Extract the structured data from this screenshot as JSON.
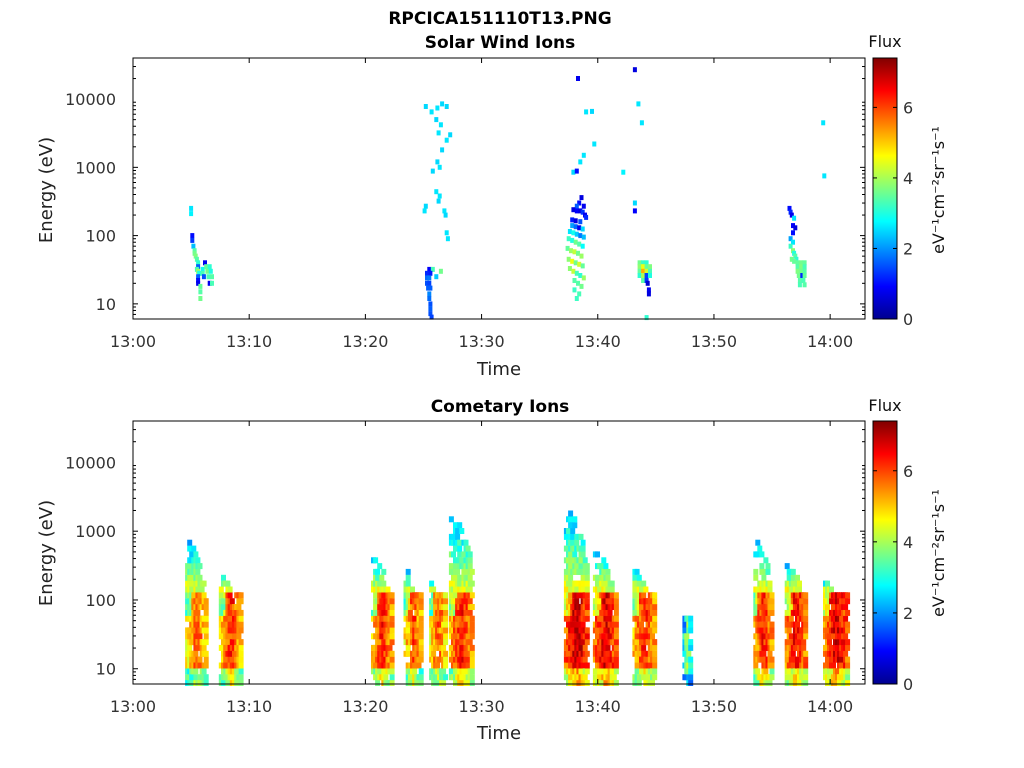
{
  "figure": {
    "title": "RPCICA151110T13.PNG",
    "colorbar_label": "Flux",
    "colorbar_unit": "eV⁻¹cm⁻²sr⁻¹s⁻¹"
  },
  "chart_data": [
    {
      "type": "heatmap",
      "title": "Solar Wind Ions",
      "xlabel": "Time",
      "ylabel": "Energy (eV)",
      "x_ticks": [
        "13:00",
        "13:10",
        "13:20",
        "13:30",
        "13:40",
        "13:50",
        "14:00"
      ],
      "x_range_minutes": [
        0,
        63
      ],
      "y_ticks": [
        "10",
        "100",
        "1000",
        "10000"
      ],
      "y_scale": "log",
      "y_range": [
        6,
        40000
      ],
      "colorbar": {
        "label": "Flux",
        "ticks": [
          "0",
          "2",
          "4",
          "6"
        ],
        "range": [
          0,
          7.4
        ],
        "colormap": "jet"
      },
      "cells": [
        [
          5.0,
          250,
          2.6
        ],
        [
          5.0,
          210,
          2.7
        ],
        [
          5.1,
          100,
          1.0
        ],
        [
          5.1,
          85,
          1.3
        ],
        [
          5.2,
          70,
          2.3
        ],
        [
          5.3,
          60,
          3.4
        ],
        [
          5.3,
          55,
          3.6
        ],
        [
          5.4,
          50,
          3.7
        ],
        [
          5.5,
          45,
          3.4
        ],
        [
          5.6,
          40,
          3.1
        ],
        [
          5.6,
          35,
          1.6
        ],
        [
          5.5,
          32,
          3.3
        ],
        [
          5.6,
          30,
          3.9
        ],
        [
          5.7,
          28,
          3.0
        ],
        [
          5.6,
          25,
          1.6
        ],
        [
          5.6,
          22,
          1.0
        ],
        [
          5.6,
          20,
          0.8
        ],
        [
          5.8,
          18,
          3.5
        ],
        [
          5.8,
          15,
          3.4
        ],
        [
          5.8,
          12,
          3.6
        ],
        [
          6.0,
          32,
          2.9
        ],
        [
          6.0,
          28,
          3.3
        ],
        [
          6.1,
          25,
          1.5
        ],
        [
          6.2,
          40,
          0.8
        ],
        [
          6.3,
          35,
          3.5
        ],
        [
          6.4,
          30,
          3.6
        ],
        [
          6.5,
          25,
          3.3
        ],
        [
          6.6,
          20,
          0.8
        ],
        [
          6.6,
          35,
          3.1
        ],
        [
          6.7,
          30,
          3.0
        ],
        [
          6.8,
          25,
          3.4
        ],
        [
          6.8,
          20,
          3.3
        ],
        [
          25.2,
          7800,
          2.5
        ],
        [
          25.7,
          6500,
          2.6
        ],
        [
          26.2,
          7400,
          2.6
        ],
        [
          26.6,
          8500,
          2.5
        ],
        [
          26.1,
          5000,
          2.5
        ],
        [
          26.5,
          4200,
          2.6
        ],
        [
          27.0,
          7800,
          2.5
        ],
        [
          26.3,
          3200,
          2.6
        ],
        [
          27.3,
          3000,
          2.5
        ],
        [
          27.0,
          2500,
          2.6
        ],
        [
          26.6,
          1800,
          2.5
        ],
        [
          26.2,
          1200,
          2.5
        ],
        [
          26.4,
          1000,
          2.6
        ],
        [
          25.8,
          880,
          2.5
        ],
        [
          26.1,
          440,
          2.6
        ],
        [
          26.4,
          380,
          2.6
        ],
        [
          26.3,
          320,
          2.5
        ],
        [
          25.2,
          270,
          2.5
        ],
        [
          25.1,
          230,
          2.6
        ],
        [
          26.8,
          230,
          2.6
        ],
        [
          26.9,
          200,
          2.5
        ],
        [
          27.0,
          110,
          2.6
        ],
        [
          27.1,
          90,
          2.6
        ],
        [
          25.5,
          32,
          0.9
        ],
        [
          25.8,
          32,
          3.3
        ],
        [
          25.3,
          28,
          1.2
        ],
        [
          25.6,
          28,
          1.1
        ],
        [
          26.5,
          30,
          3.6
        ],
        [
          25.3,
          24,
          1.7
        ],
        [
          25.5,
          24,
          1.8
        ],
        [
          26.1,
          25,
          2.4
        ],
        [
          25.3,
          20,
          1.5
        ],
        [
          25.5,
          20,
          1.4
        ],
        [
          25.4,
          17,
          1.6
        ],
        [
          25.6,
          17,
          1.6
        ],
        [
          25.5,
          14,
          1.9
        ],
        [
          25.5,
          12,
          1.7
        ],
        [
          25.6,
          10,
          1.5
        ],
        [
          25.6,
          8.5,
          1.6
        ],
        [
          25.6,
          7.2,
          1.5
        ],
        [
          25.7,
          6.4,
          1.4
        ],
        [
          38.3,
          20000,
          0.8
        ],
        [
          39.0,
          6500,
          2.6
        ],
        [
          39.5,
          6600,
          2.5
        ],
        [
          39.7,
          2200,
          2.6
        ],
        [
          37.9,
          850,
          2.5
        ],
        [
          38.2,
          880,
          1.0
        ],
        [
          38.5,
          1200,
          2.6
        ],
        [
          38.8,
          1500,
          2.6
        ],
        [
          38.6,
          360,
          0.7
        ],
        [
          38.4,
          300,
          1.0
        ],
        [
          38.2,
          270,
          1.6
        ],
        [
          38.8,
          270,
          0.8
        ],
        [
          37.9,
          240,
          0.7
        ],
        [
          38.2,
          230,
          0.9
        ],
        [
          38.5,
          230,
          0.7
        ],
        [
          38.7,
          220,
          1.3
        ],
        [
          38.9,
          200,
          0.8
        ],
        [
          39.0,
          185,
          1.2
        ],
        [
          37.8,
          170,
          1.1
        ],
        [
          38.1,
          165,
          0.7
        ],
        [
          38.5,
          160,
          1.5
        ],
        [
          37.8,
          140,
          2.1
        ],
        [
          38.1,
          135,
          1.7
        ],
        [
          38.4,
          130,
          0.8
        ],
        [
          38.7,
          125,
          2.5
        ],
        [
          37.6,
          115,
          2.6
        ],
        [
          37.9,
          110,
          2.9
        ],
        [
          38.2,
          105,
          2.4
        ],
        [
          38.5,
          100,
          1.8
        ],
        [
          38.8,
          95,
          2.3
        ],
        [
          37.5,
          90,
          3.2
        ],
        [
          37.8,
          85,
          3.0
        ],
        [
          38.1,
          80,
          3.6
        ],
        [
          38.4,
          75,
          3.4
        ],
        [
          38.7,
          70,
          2.8
        ],
        [
          37.4,
          65,
          3.5
        ],
        [
          37.7,
          60,
          3.9
        ],
        [
          38.0,
          58,
          4.2
        ],
        [
          38.3,
          55,
          3.6
        ],
        [
          38.6,
          50,
          3.9
        ],
        [
          37.5,
          45,
          3.8
        ],
        [
          37.8,
          42,
          4.5
        ],
        [
          38.1,
          40,
          3.6
        ],
        [
          38.4,
          38,
          4.3
        ],
        [
          38.7,
          36,
          3.5
        ],
        [
          37.6,
          33,
          3.8
        ],
        [
          37.9,
          30,
          4.2
        ],
        [
          38.2,
          28,
          3.3
        ],
        [
          38.5,
          26,
          3.1
        ],
        [
          38.8,
          24,
          3.9
        ],
        [
          38.0,
          22,
          3.4
        ],
        [
          38.3,
          20,
          3.4
        ],
        [
          38.6,
          18,
          3.6
        ],
        [
          38.0,
          16,
          3.2
        ],
        [
          38.4,
          14,
          3.3
        ],
        [
          38.2,
          12,
          3.2
        ],
        [
          42.2,
          850,
          2.7
        ],
        [
          43.2,
          27000,
          0.7
        ],
        [
          43.5,
          8500,
          2.6
        ],
        [
          43.8,
          4500,
          2.6
        ],
        [
          43.2,
          300,
          2.5
        ],
        [
          43.2,
          230,
          0.9
        ],
        [
          43.6,
          40,
          3.6
        ],
        [
          43.9,
          40,
          3.2
        ],
        [
          44.2,
          40,
          3.1
        ],
        [
          43.6,
          35,
          3.8
        ],
        [
          43.9,
          35,
          4.5
        ],
        [
          44.2,
          35,
          3.5
        ],
        [
          44.5,
          35,
          3.7
        ],
        [
          43.6,
          30,
          3.5
        ],
        [
          43.9,
          30,
          5.2
        ],
        [
          44.2,
          30,
          4.3
        ],
        [
          44.5,
          30,
          3.3
        ],
        [
          43.6,
          26,
          3.1
        ],
        [
          43.9,
          26,
          4.0
        ],
        [
          44.2,
          26,
          1.4
        ],
        [
          44.5,
          26,
          3.0
        ],
        [
          43.9,
          22,
          3.4
        ],
        [
          44.2,
          22,
          1.3
        ],
        [
          44.3,
          20,
          0.6
        ],
        [
          44.4,
          16,
          0.8
        ],
        [
          44.4,
          14,
          0.7
        ],
        [
          44.2,
          6.3,
          3.1
        ],
        [
          56.5,
          250,
          1.0
        ],
        [
          56.6,
          220,
          1.2
        ],
        [
          56.7,
          200,
          0.8
        ],
        [
          56.9,
          180,
          2.6
        ],
        [
          56.8,
          140,
          0.9
        ],
        [
          57.0,
          130,
          0.7
        ],
        [
          56.8,
          110,
          1.0
        ],
        [
          56.6,
          90,
          2.1
        ],
        [
          56.8,
          80,
          2.6
        ],
        [
          56.6,
          70,
          3.2
        ],
        [
          56.8,
          60,
          3.8
        ],
        [
          56.9,
          55,
          3.0
        ],
        [
          57.0,
          50,
          3.4
        ],
        [
          56.7,
          45,
          3.6
        ],
        [
          57.1,
          45,
          3.1
        ],
        [
          56.9,
          42,
          3.5
        ],
        [
          57.2,
          40,
          3.5
        ],
        [
          57.5,
          40,
          3.6
        ],
        [
          57.8,
          40,
          3.5
        ],
        [
          57.2,
          35,
          3.4
        ],
        [
          57.5,
          35,
          3.7
        ],
        [
          57.8,
          35,
          3.3
        ],
        [
          57.2,
          30,
          3.7
        ],
        [
          57.5,
          30,
          3.6
        ],
        [
          57.8,
          30,
          3.4
        ],
        [
          57.3,
          26,
          3.6
        ],
        [
          57.6,
          26,
          1.2
        ],
        [
          57.8,
          26,
          3.5
        ],
        [
          57.4,
          22,
          3.4
        ],
        [
          57.7,
          22,
          3.3
        ],
        [
          57.4,
          19,
          3.3
        ],
        [
          57.8,
          19,
          3.4
        ],
        [
          59.4,
          4500,
          2.6
        ],
        [
          59.5,
          750,
          2.6
        ]
      ]
    },
    {
      "type": "heatmap",
      "title": "Cometary Ions",
      "xlabel": "Time",
      "ylabel": "Energy (eV)",
      "x_ticks": [
        "13:00",
        "13:10",
        "13:20",
        "13:30",
        "13:40",
        "13:50",
        "14:00"
      ],
      "x_range_minutes": [
        0,
        63
      ],
      "y_ticks": [
        "10",
        "100",
        "1000",
        "10000"
      ],
      "y_scale": "log",
      "y_range": [
        6,
        40000
      ],
      "colorbar": {
        "label": "Flux",
        "ticks": [
          "0",
          "2",
          "4",
          "6"
        ],
        "range": [
          0,
          7.4
        ],
        "colormap": "jet"
      },
      "events": [
        [
          4.7,
          1.6,
          140,
          800,
          5.8
        ],
        [
          7.6,
          1.7,
          140,
          250,
          6.2
        ],
        [
          20.7,
          1.6,
          140,
          500,
          6.3
        ],
        [
          23.5,
          1.3,
          140,
          300,
          6.0
        ],
        [
          25.7,
          1.2,
          140,
          180,
          5.9
        ],
        [
          27.4,
          1.8,
          140,
          2000,
          6.4
        ],
        [
          37.3,
          1.8,
          140,
          2400,
          7.0
        ],
        [
          39.8,
          1.8,
          140,
          600,
          6.8
        ],
        [
          43.2,
          1.7,
          140,
          300,
          6.3
        ],
        [
          47.5,
          0.5,
          60,
          60,
          4.0
        ],
        [
          53.6,
          1.4,
          140,
          900,
          6.4
        ],
        [
          56.3,
          1.6,
          140,
          400,
          6.6
        ],
        [
          59.6,
          1.9,
          140,
          200,
          6.8
        ]
      ]
    }
  ]
}
